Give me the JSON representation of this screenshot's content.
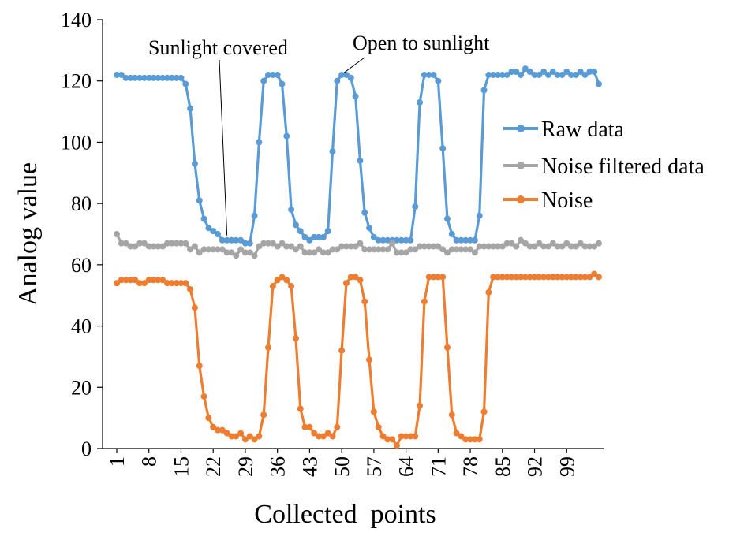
{
  "chart_data": {
    "type": "line",
    "title": "",
    "xlabel": "Collected  points",
    "ylabel": "Analog value",
    "ylim": [
      0,
      140
    ],
    "yticks": [
      0,
      20,
      40,
      60,
      80,
      100,
      120,
      140
    ],
    "xticks": [
      1,
      8,
      15,
      22,
      29,
      36,
      43,
      50,
      57,
      64,
      71,
      78,
      85,
      92,
      99
    ],
    "legend_position": "right",
    "grid": false,
    "x_start": 1,
    "series": [
      {
        "name": "Raw data",
        "color": "#5B9BD5",
        "values": [
          122,
          122,
          121,
          121,
          121,
          121,
          121,
          121,
          121,
          121,
          121,
          121,
          121,
          121,
          121,
          119,
          111,
          93,
          81,
          75,
          72,
          71,
          70,
          68,
          68,
          68,
          68,
          68,
          67,
          67,
          76,
          100,
          120,
          122,
          122,
          122,
          119,
          102,
          78,
          73,
          71,
          69,
          68,
          69,
          69,
          69,
          71,
          97,
          120,
          122,
          122,
          121,
          115,
          94,
          77,
          72,
          69,
          68,
          68,
          68,
          68,
          68,
          68,
          68,
          68,
          79,
          113,
          122,
          122,
          122,
          120,
          98,
          75,
          70,
          68,
          68,
          68,
          68,
          68,
          76,
          117,
          122,
          122,
          122,
          122,
          122,
          123,
          123,
          122,
          124,
          123,
          122,
          122,
          123,
          122,
          123,
          122,
          122,
          123,
          122,
          122,
          123,
          122,
          123,
          123,
          119
        ]
      },
      {
        "name": "Noise filtered data",
        "color": "#A5A5A5",
        "values": [
          70,
          67,
          67,
          66,
          66,
          67,
          67,
          66,
          66,
          66,
          66,
          67,
          67,
          67,
          67,
          67,
          65,
          66,
          64,
          65,
          65,
          65,
          65,
          65,
          64,
          64,
          63,
          65,
          64,
          64,
          63,
          66,
          67,
          67,
          67,
          66,
          67,
          66,
          66,
          65,
          66,
          64,
          64,
          64,
          65,
          64,
          64,
          65,
          65,
          66,
          66,
          66,
          66,
          67,
          65,
          65,
          65,
          65,
          65,
          65,
          67,
          64,
          64,
          64,
          65,
          65,
          66,
          66,
          66,
          66,
          66,
          65,
          64,
          65,
          65,
          65,
          65,
          65,
          64,
          66,
          66,
          66,
          66,
          66,
          66,
          67,
          67,
          66,
          68,
          67,
          66,
          66,
          67,
          66,
          66,
          67,
          66,
          66,
          67,
          66,
          66,
          67,
          66,
          66,
          66,
          67
        ]
      },
      {
        "name": "Noise",
        "color": "#ED7D31",
        "values": [
          54,
          55,
          55,
          55,
          55,
          54,
          54,
          55,
          55,
          55,
          55,
          54,
          54,
          54,
          54,
          54,
          52,
          46,
          27,
          17,
          10,
          7,
          6,
          6,
          5,
          4,
          4,
          5,
          3,
          4,
          3,
          4,
          11,
          33,
          53,
          55,
          56,
          55,
          53,
          36,
          13,
          7,
          7,
          5,
          4,
          4,
          5,
          4,
          7,
          32,
          54,
          56,
          56,
          55,
          48,
          29,
          12,
          7,
          4,
          3,
          3,
          1,
          4,
          4,
          4,
          4,
          14,
          48,
          56,
          56,
          56,
          56,
          33,
          11,
          5,
          4,
          3,
          3,
          3,
          3,
          12,
          51,
          56,
          56,
          56,
          56,
          56,
          56,
          56,
          56,
          56,
          56,
          56,
          56,
          56,
          56,
          56,
          56,
          56,
          56,
          56,
          56,
          56,
          56,
          57,
          56
        ]
      }
    ],
    "annotations": [
      {
        "text": "Sunlight covered",
        "x": 25,
        "y": 68
      },
      {
        "text": "Open to sunlight",
        "x": 50,
        "y": 122
      }
    ]
  }
}
